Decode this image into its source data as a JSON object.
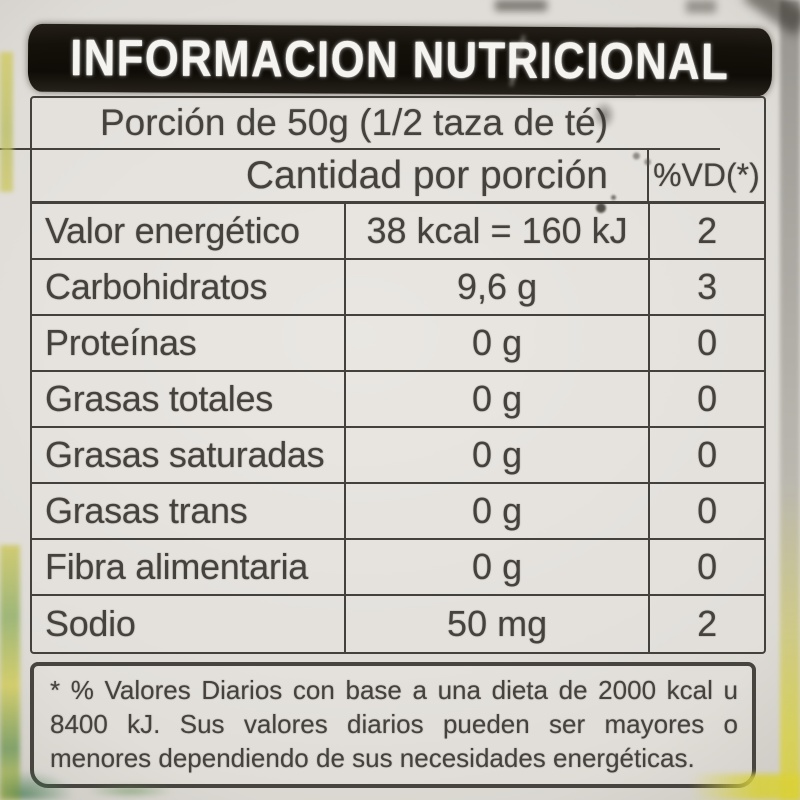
{
  "label": {
    "title": "INFORMACION NUTRICIONAL",
    "portion_line": "Porción de 50g (1/2 taza de té)",
    "table": {
      "header": {
        "amount_col": "Cantidad por porción",
        "dv_col": "%VD(*)"
      },
      "rows": [
        {
          "name": "Valor energético",
          "amount": "38 kcal = 160 kJ",
          "dv": "2"
        },
        {
          "name": "Carbohidratos",
          "amount": "9,6 g",
          "dv": "3"
        },
        {
          "name": "Proteínas",
          "amount": "0 g",
          "dv": "0"
        },
        {
          "name": "Grasas totales",
          "amount": "0 g",
          "dv": "0"
        },
        {
          "name": "Grasas saturadas",
          "amount": "0 g",
          "dv": "0"
        },
        {
          "name": "Grasas trans",
          "amount": "0 g",
          "dv": "0"
        },
        {
          "name": "Fibra alimentaria",
          "amount": "0 g",
          "dv": "0"
        },
        {
          "name": "Sodio",
          "amount": "50 mg",
          "dv": "2"
        }
      ]
    },
    "footnote": "* % Valores Diarios con base a una dieta de 2000 kcal u 8400 kJ. Sus valores diarios pueden ser mayores o menores dependiendo de sus necesidades energéticas.",
    "colors": {
      "banner_bg": "#14100a",
      "banner_text": "#f5f4f0",
      "paper": "#e2dfda",
      "ink": "#45423e",
      "border": "#44403c",
      "edge_yellow": "#ded73e",
      "edge_green": "#6f9a55"
    }
  }
}
